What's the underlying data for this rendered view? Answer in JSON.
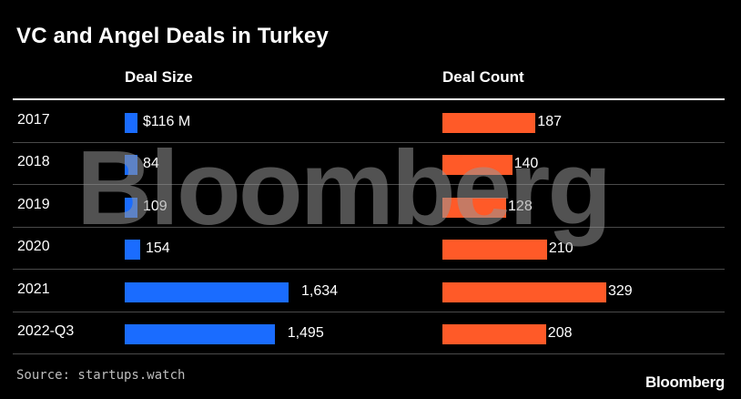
{
  "chart_data": {
    "type": "bar",
    "title": "VC and Angel Deals in Turkey",
    "categories": [
      "2017",
      "2018",
      "2019",
      "2020",
      "2021",
      "2022-Q3"
    ],
    "series": [
      {
        "name": "Deal Size",
        "values": [
          116,
          84,
          109,
          154,
          1634,
          1495
        ],
        "labels": [
          "$116 M",
          "84",
          "109",
          "154",
          "1,634",
          "1,495"
        ],
        "color": "#1a6cff"
      },
      {
        "name": "Deal Count",
        "values": [
          187,
          140,
          128,
          210,
          329,
          208
        ],
        "labels": [
          "187",
          "140",
          "128",
          "210",
          "329",
          "208"
        ],
        "color": "#ff5a28"
      }
    ],
    "orientation": "horizontal",
    "grid": false
  },
  "source": "Source: startups.watch",
  "logo_text": "Bloomberg",
  "watermark_text": "Bloomberg"
}
